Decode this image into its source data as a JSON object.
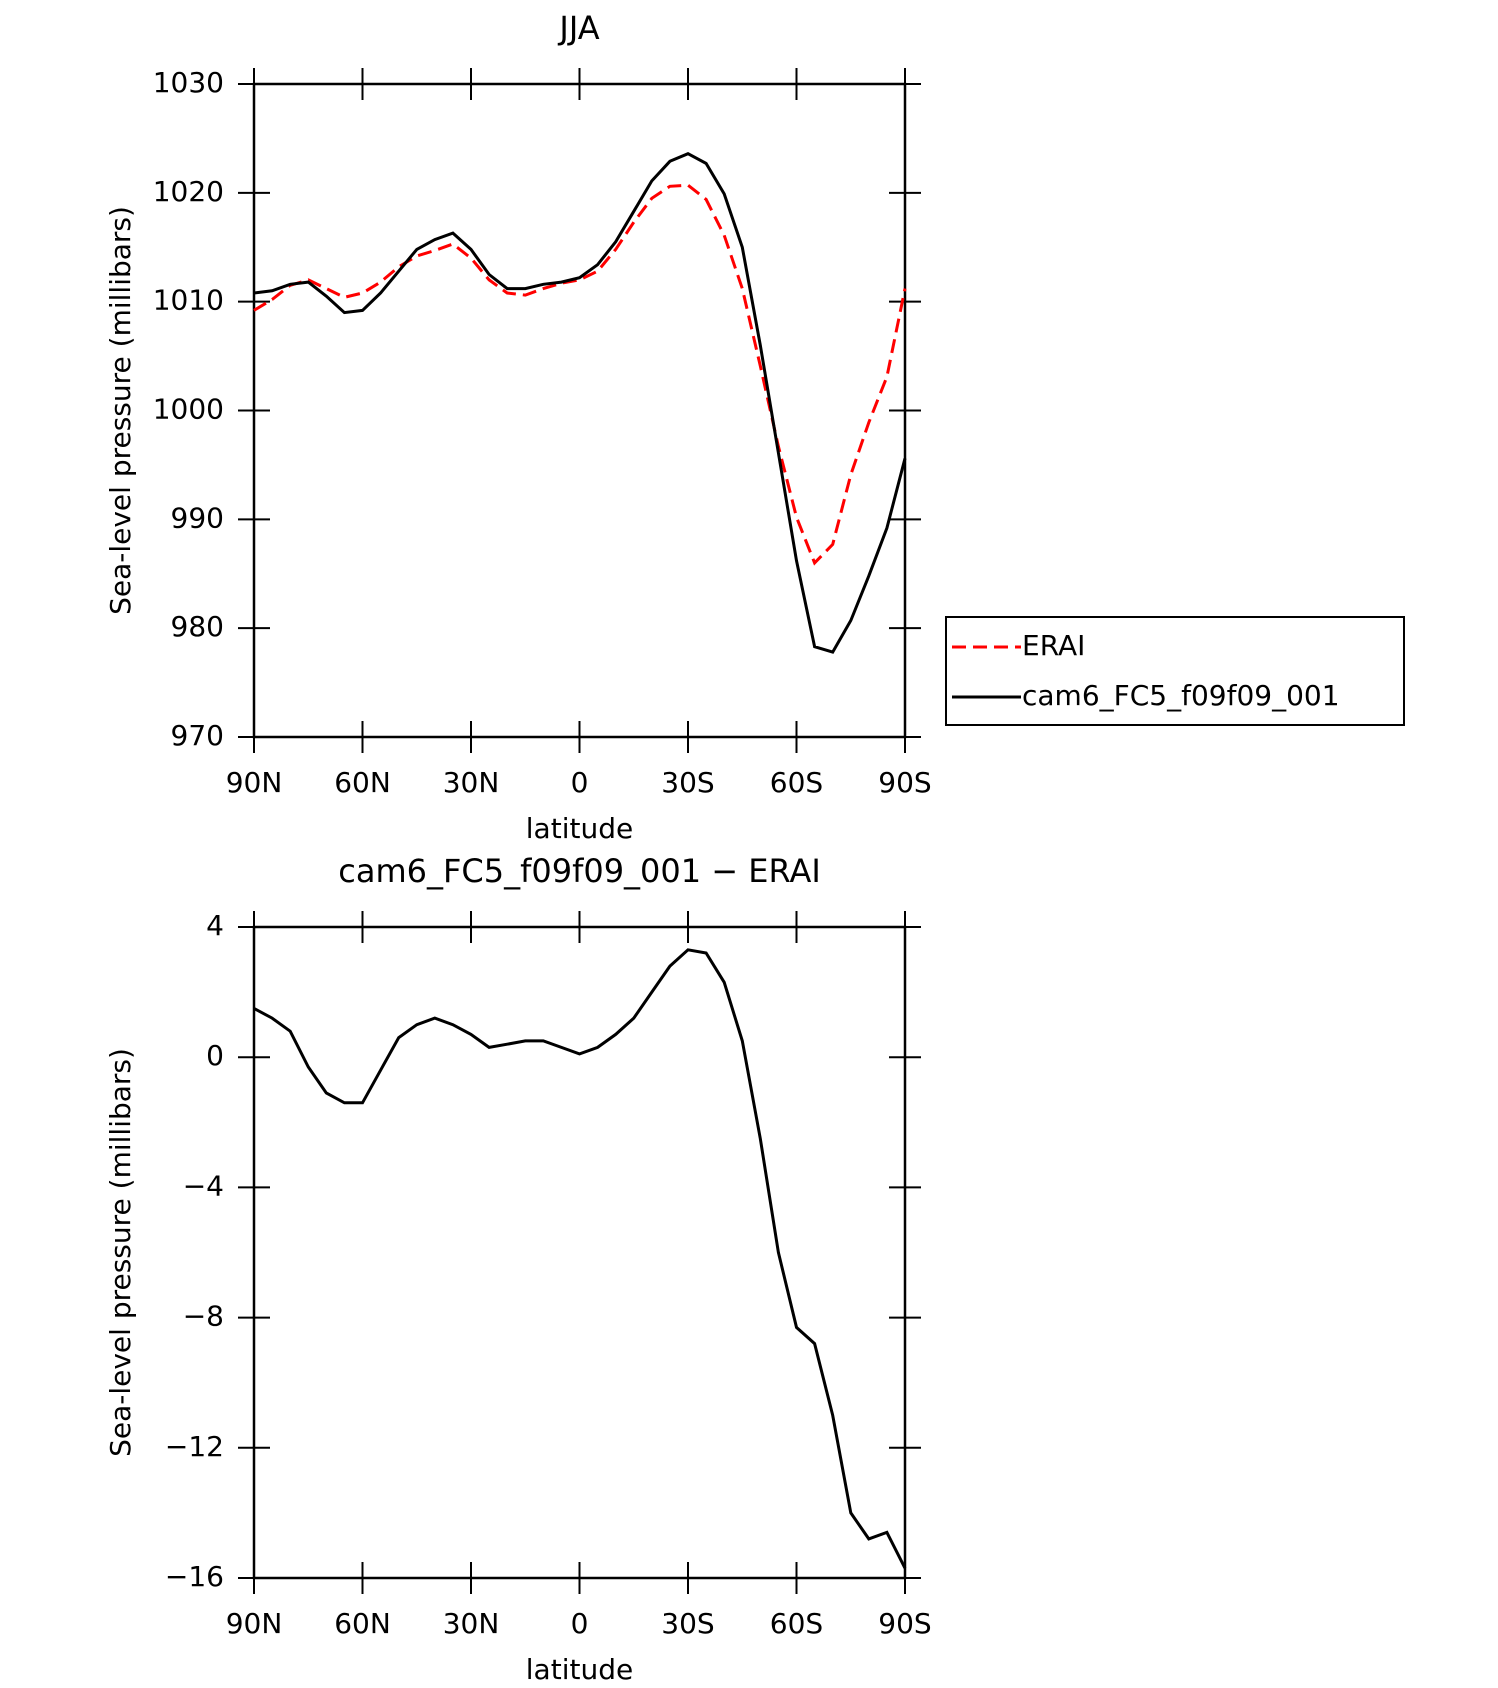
{
  "chart_data": [
    {
      "type": "line",
      "title": "JJA",
      "xlabel": "latitude",
      "ylabel": "Sea-level pressure (millibars)",
      "x": [
        90,
        85,
        80,
        75,
        70,
        65,
        60,
        55,
        50,
        45,
        40,
        35,
        30,
        25,
        20,
        15,
        10,
        5,
        0,
        -5,
        -10,
        -15,
        -20,
        -25,
        -30,
        -35,
        -40,
        -45,
        -50,
        -55,
        -60,
        -65,
        -70,
        -75,
        -80,
        -85,
        -90
      ],
      "series": [
        {
          "name": "ERAI",
          "color": "#ff0000",
          "dash": true,
          "values": [
            1009.2,
            1010.2,
            1011.5,
            1012.0,
            1011.2,
            1010.4,
            1010.8,
            1011.8,
            1013.2,
            1014.2,
            1014.7,
            1015.3,
            1014.0,
            1012.0,
            1010.8,
            1010.6,
            1011.2,
            1011.7,
            1012.0,
            1012.8,
            1014.8,
            1017.3,
            1019.5,
            1020.6,
            1020.7,
            1019.4,
            1016.1,
            1011.2,
            1004.1,
            996.7,
            990.2,
            986.0,
            987.7,
            994.1,
            998.9,
            1003.1,
            1011.2
          ]
        },
        {
          "name": "cam6_FC5_f09f09_001",
          "color": "#000000",
          "dash": false,
          "values": [
            1010.8,
            1011.0,
            1011.6,
            1011.8,
            1010.5,
            1009.0,
            1009.2,
            1010.8,
            1012.8,
            1014.8,
            1015.7,
            1016.3,
            1014.8,
            1012.5,
            1011.2,
            1011.2,
            1011.6,
            1011.8,
            1012.2,
            1013.4,
            1015.5,
            1018.3,
            1021.1,
            1022.9,
            1023.6,
            1022.7,
            1019.9,
            1015.0,
            1006.0,
            996.1,
            986.2,
            978.3,
            977.8,
            980.7,
            984.8,
            989.2,
            995.6
          ]
        }
      ],
      "xlim": [
        90,
        -90
      ],
      "xticks": [
        {
          "value": 90,
          "label": "90N"
        },
        {
          "value": 60,
          "label": "60N"
        },
        {
          "value": 30,
          "label": "30N"
        },
        0,
        {
          "value": -30,
          "label": "30S"
        },
        {
          "value": -60,
          "label": "60S"
        },
        {
          "value": -90,
          "label": "90S"
        }
      ],
      "ylim": [
        970,
        1030
      ],
      "yticks": [
        970,
        980,
        990,
        1000,
        1010,
        1020,
        1030
      ],
      "legend": "outside-right"
    },
    {
      "type": "line",
      "title": "cam6_FC5_f09f09_001 − ERAI",
      "xlabel": "latitude",
      "ylabel": "Sea-level pressure (millibars)",
      "x": [
        90,
        85,
        80,
        75,
        70,
        65,
        60,
        55,
        50,
        45,
        40,
        35,
        30,
        25,
        20,
        15,
        10,
        5,
        0,
        -5,
        -10,
        -15,
        -20,
        -25,
        -30,
        -35,
        -40,
        -45,
        -50,
        -55,
        -60,
        -65,
        -70,
        -75,
        -80,
        -85,
        -90
      ],
      "series": [
        {
          "color": "#000000",
          "dash": false,
          "values": [
            1.5,
            1.2,
            0.8,
            -0.3,
            -1.1,
            -1.4,
            -1.4,
            -0.4,
            0.6,
            1.0,
            1.2,
            1.0,
            0.7,
            0.3,
            0.4,
            0.5,
            0.5,
            0.3,
            0.1,
            0.3,
            0.7,
            1.2,
            2.0,
            2.8,
            3.3,
            3.2,
            2.3,
            0.5,
            -2.5,
            -6.0,
            -8.3,
            -8.8,
            -11.0,
            -14.0,
            -14.8,
            -14.6,
            -15.7
          ]
        }
      ],
      "xlim": [
        90,
        -90
      ],
      "xticks": [
        {
          "value": 90,
          "label": "90N"
        },
        {
          "value": 60,
          "label": "60N"
        },
        {
          "value": 30,
          "label": "30N"
        },
        0,
        {
          "value": -30,
          "label": "30S"
        },
        {
          "value": -60,
          "label": "60S"
        },
        {
          "value": -90,
          "label": "90S"
        }
      ],
      "ylim": [
        -16,
        4
      ],
      "yticks": [
        {
          "value": -16,
          "label": "−16"
        },
        {
          "value": -12,
          "label": "−12"
        },
        {
          "value": -8,
          "label": "−8"
        },
        {
          "value": -4,
          "label": "−4"
        },
        0,
        4
      ]
    }
  ]
}
